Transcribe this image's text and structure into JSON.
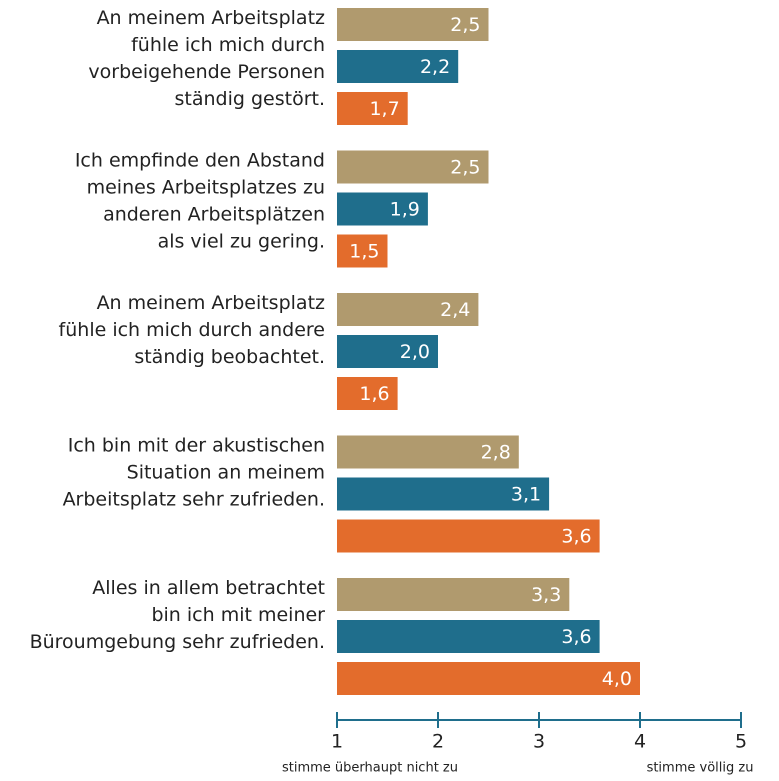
{
  "chart_data": {
    "type": "bar",
    "orientation": "horizontal",
    "categories": [
      "An meinem Arbeitsplatz\nfühle ich mich durch\nvorbeigehende Personen\nständig gestört.",
      "Ich empfinde den Abstand\nmeines Arbeitsplatzes zu\nanderen Arbeitsplätzen\nals viel zu gering.",
      "An meinem Arbeitsplatz\nfühle ich mich durch andere\nständig beobachtet.",
      "Ich bin mit der akustischen\nSituation an meinem\nArbeitsplatz sehr zufrieden.",
      "Alles in allem betrachtet\nbin ich mit meiner\nBüroumgebung sehr zufrieden."
    ],
    "series": [
      {
        "color": "#b09a6e",
        "values": [
          2.5,
          2.5,
          2.4,
          2.8,
          3.3
        ],
        "value_labels": [
          "2,5",
          "2,5",
          "2,4",
          "2,8",
          "3,3"
        ]
      },
      {
        "color": "#1f6e8c",
        "values": [
          2.2,
          1.9,
          2.0,
          3.1,
          3.6
        ],
        "value_labels": [
          "2,2",
          "1,9",
          "2,0",
          "3,1",
          "3,6"
        ]
      },
      {
        "color": "#e36c2c",
        "values": [
          1.7,
          1.5,
          1.6,
          3.6,
          4.0
        ],
        "value_labels": [
          "1,7",
          "1,5",
          "1,6",
          "3,6",
          "4,0"
        ]
      }
    ],
    "xlim": [
      1,
      5
    ],
    "xticks": [
      1,
      2,
      3,
      4,
      5
    ],
    "xlabel_left": "stimme überhaupt nicht zu",
    "xlabel_right": "stimme völlig zu",
    "axis_color": "#1f6e8c"
  }
}
